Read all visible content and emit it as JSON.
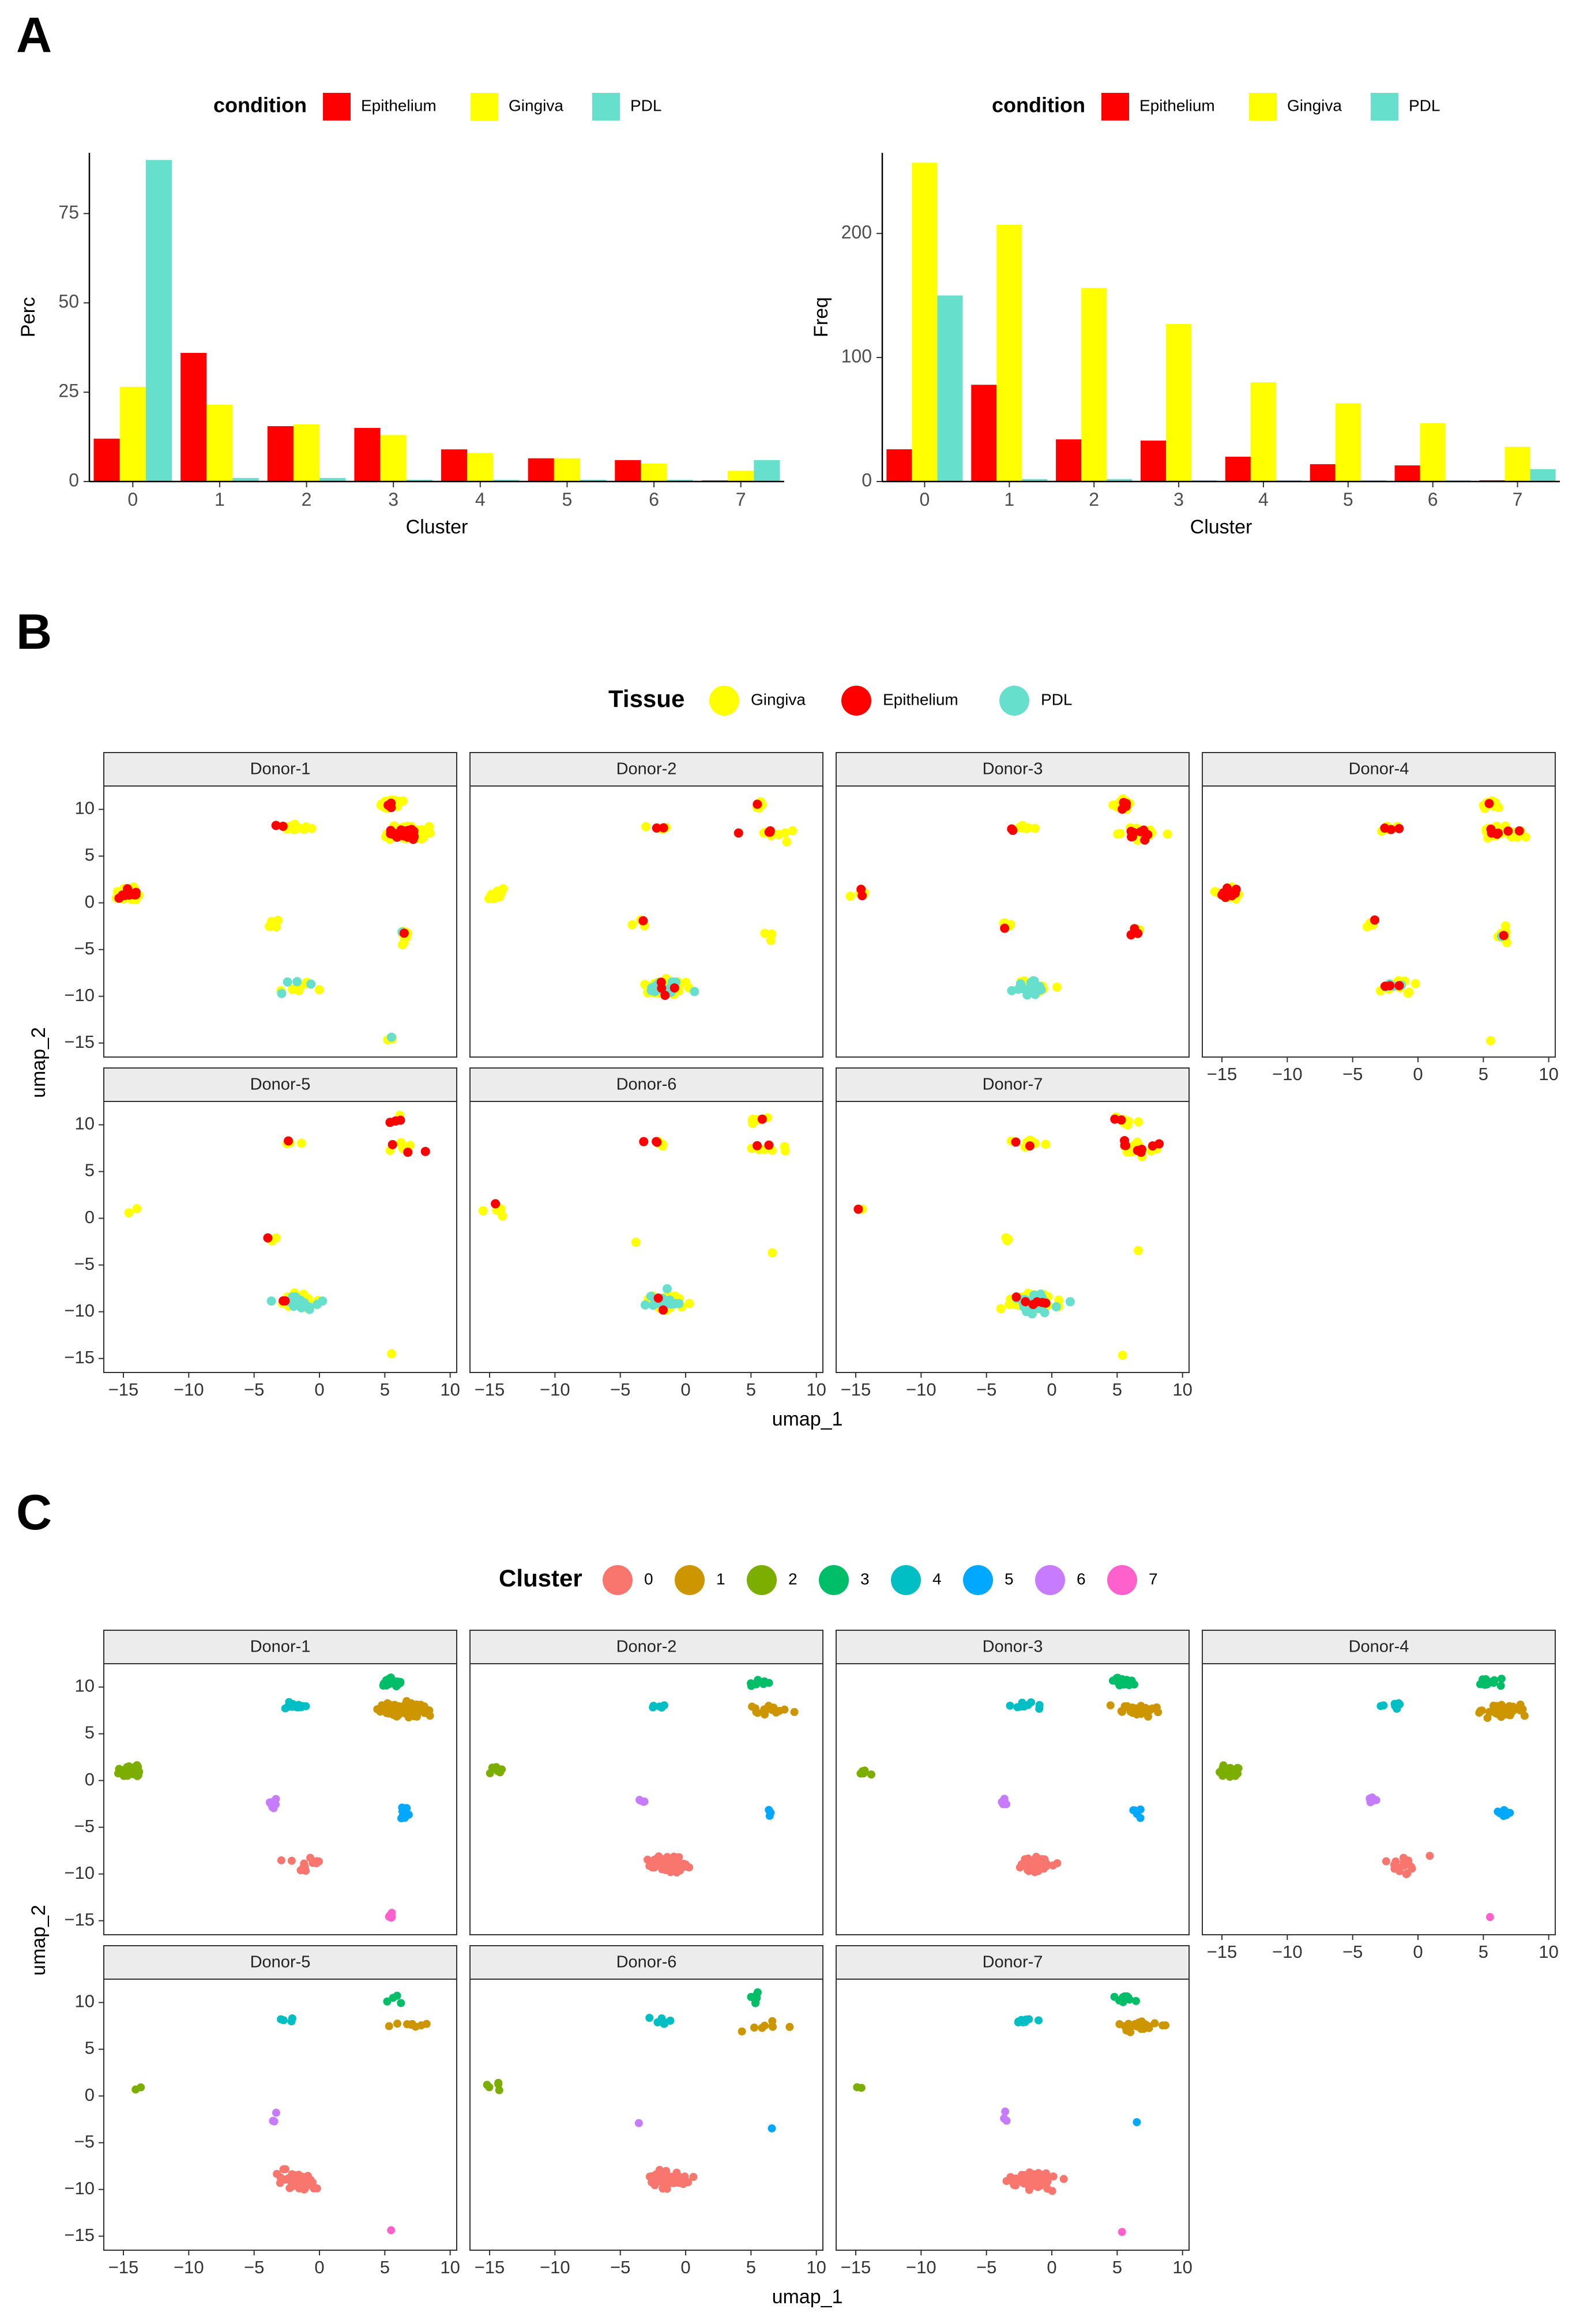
{
  "panel_labels": {
    "a": "A",
    "b": "B",
    "c": "C"
  },
  "colors": {
    "Epithelium": "#ff0000",
    "Gingiva": "#ffff00",
    "PDL": "#66e0cc",
    "clusters": [
      "#f8766d",
      "#cd9600",
      "#7cae00",
      "#00be67",
      "#00bfc4",
      "#00a9ff",
      "#c77cff",
      "#ff61cc"
    ]
  },
  "chart_data": [
    {
      "id": "a-left",
      "type": "bar",
      "title": "",
      "xlabel": "Cluster",
      "ylabel": "Perc",
      "categories": [
        "0",
        "1",
        "2",
        "3",
        "4",
        "5",
        "6",
        "7"
      ],
      "ylim": [
        0,
        92
      ],
      "yticks": [
        0,
        25,
        50,
        75
      ],
      "legend": {
        "title": "condition",
        "position": "top"
      },
      "series": [
        {
          "name": "Epithelium",
          "values": [
            12,
            36,
            15.5,
            15,
            9,
            6.5,
            6,
            0.3
          ]
        },
        {
          "name": "Gingiva",
          "values": [
            26.5,
            21.5,
            16,
            13,
            8,
            6.5,
            5,
            3
          ]
        },
        {
          "name": "PDL",
          "values": [
            90,
            1,
            1,
            0.5,
            0.5,
            0.5,
            0.5,
            6
          ]
        }
      ]
    },
    {
      "id": "a-right",
      "type": "bar",
      "title": "",
      "xlabel": "Cluster",
      "ylabel": "Freq",
      "categories": [
        "0",
        "1",
        "2",
        "3",
        "4",
        "5",
        "6",
        "7"
      ],
      "ylim": [
        0,
        265
      ],
      "yticks": [
        0,
        100,
        200
      ],
      "legend": {
        "title": "condition",
        "position": "top"
      },
      "series": [
        {
          "name": "Epithelium",
          "values": [
            26,
            78,
            34,
            33,
            20,
            14,
            13,
            1
          ]
        },
        {
          "name": "Gingiva",
          "values": [
            257,
            207,
            156,
            127,
            80,
            63,
            47,
            28
          ]
        },
        {
          "name": "PDL",
          "values": [
            150,
            2,
            2,
            1,
            1,
            1,
            1,
            10
          ]
        }
      ]
    },
    {
      "id": "b",
      "type": "scatter",
      "title": "",
      "xlabel": "umap_1",
      "ylabel": "umap_2",
      "xlim": [
        -16.5,
        10.5
      ],
      "ylim": [
        -16.5,
        12.5
      ],
      "xticks": [
        -15,
        -10,
        -5,
        0,
        5,
        10
      ],
      "yticks": [
        -15,
        -10,
        -5,
        0,
        5,
        10
      ],
      "color_by": "tissue",
      "legend": {
        "title": "Tissue",
        "position": "top",
        "entries": [
          "Gingiva",
          "Epithelium",
          "PDL"
        ]
      },
      "facets": [
        "Donor-1",
        "Donor-2",
        "Donor-3",
        "Donor-4",
        "Donor-5",
        "Donor-6",
        "Donor-7"
      ]
    },
    {
      "id": "c",
      "type": "scatter",
      "title": "",
      "xlabel": "umap_1",
      "ylabel": "umap_2",
      "xlim": [
        -16.5,
        10.5
      ],
      "ylim": [
        -16.5,
        12.5
      ],
      "xticks": [
        -15,
        -10,
        -5,
        0,
        5,
        10
      ],
      "yticks": [
        -15,
        -10,
        -5,
        0,
        5,
        10
      ],
      "color_by": "cluster",
      "legend": {
        "title": "Cluster",
        "position": "top",
        "entries": [
          "0",
          "1",
          "2",
          "3",
          "4",
          "5",
          "6",
          "7"
        ]
      },
      "facets": [
        "Donor-1",
        "Donor-2",
        "Donor-3",
        "Donor-4",
        "Donor-5",
        "Donor-6",
        "Donor-7"
      ]
    }
  ],
  "umap_clusters": [
    {
      "cluster": 0,
      "x": -1.5,
      "y": -9.0,
      "sx": 1.4,
      "sy": 0.8
    },
    {
      "cluster": 1,
      "x": 6.5,
      "y": 7.5,
      "sx": 1.5,
      "sy": 0.6
    },
    {
      "cluster": 2,
      "x": -14.5,
      "y": 1.0,
      "sx": 0.7,
      "sy": 0.5
    },
    {
      "cluster": 3,
      "x": 5.5,
      "y": 10.5,
      "sx": 0.7,
      "sy": 0.4
    },
    {
      "cluster": 4,
      "x": -2.0,
      "y": 8.0,
      "sx": 1.0,
      "sy": 0.3
    },
    {
      "cluster": 5,
      "x": 6.5,
      "y": -3.5,
      "sx": 0.4,
      "sy": 0.6
    },
    {
      "cluster": 6,
      "x": -3.5,
      "y": -2.3,
      "sx": 0.4,
      "sy": 0.6
    },
    {
      "cluster": 7,
      "x": 5.5,
      "y": -14.5,
      "sx": 0.2,
      "sy": 0.2
    }
  ],
  "donor_cell_counts": {
    "Donor-1": [
      12,
      110,
      55,
      45,
      14,
      12,
      10,
      8
    ],
    "Donor-2": [
      80,
      14,
      8,
      8,
      5,
      3,
      4,
      0
    ],
    "Donor-3": [
      40,
      28,
      6,
      22,
      10,
      5,
      5,
      0
    ],
    "Donor-4": [
      18,
      45,
      30,
      12,
      8,
      12,
      6,
      1
    ],
    "Donor-5": [
      50,
      8,
      2,
      4,
      4,
      0,
      3,
      1
    ],
    "Donor-6": [
      50,
      8,
      5,
      7,
      7,
      1,
      1,
      0
    ],
    "Donor-7": [
      100,
      24,
      2,
      10,
      9,
      1,
      3,
      1
    ]
  }
}
